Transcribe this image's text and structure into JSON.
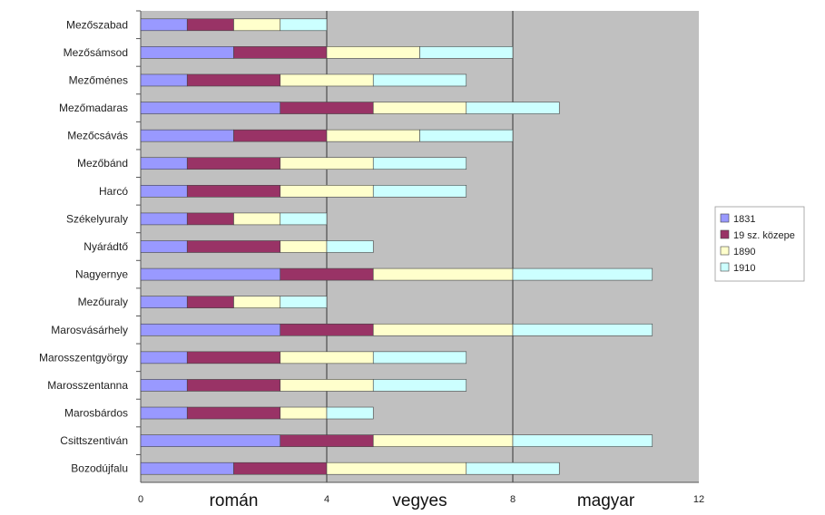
{
  "chart_data": {
    "type": "bar",
    "orientation": "horizontal",
    "stacked": true,
    "title": "",
    "xlabel": "",
    "ylabel": "",
    "xlim": [
      0,
      12
    ],
    "x_ticks": [
      "0",
      "4",
      "8",
      "12"
    ],
    "zone_labels": [
      "román",
      "vegyes",
      "magyar"
    ],
    "legend_position": "right",
    "plot_background": "#c0c0c0",
    "categories": [
      "Mezőszabad",
      "Mezősámsod",
      "Mezőménes",
      "Mezőmadaras",
      "Mezőcsávás",
      "Mezőbánd",
      "Harcó",
      "Székelyuraly",
      "Nyárádtő",
      "Nagyernye",
      "Mezőuraly",
      "Marosvásárhely",
      "Marosszentgyörgy",
      "Marosszentanna",
      "Marosbárdos",
      "Csittszentiván",
      "Bozodújfalu"
    ],
    "series": [
      {
        "name": "1831",
        "color": "#9999ff",
        "values": [
          1,
          2,
          1,
          3,
          2,
          1,
          1,
          1,
          1,
          3,
          1,
          3,
          1,
          1,
          1,
          3,
          2
        ]
      },
      {
        "name": "19 sz. közepe",
        "color": "#993366",
        "values": [
          1,
          2,
          2,
          2,
          2,
          2,
          2,
          1,
          2,
          2,
          1,
          2,
          2,
          2,
          2,
          2,
          2
        ]
      },
      {
        "name": "1890",
        "color": "#ffffcc",
        "values": [
          1,
          2,
          2,
          2,
          2,
          2,
          2,
          1,
          1,
          3,
          1,
          3,
          2,
          2,
          1,
          3,
          3
        ]
      },
      {
        "name": "1910",
        "color": "#ccffff",
        "values": [
          1,
          2,
          2,
          2,
          2,
          2,
          2,
          1,
          1,
          3,
          1,
          3,
          2,
          2,
          1,
          3,
          2
        ]
      }
    ]
  }
}
